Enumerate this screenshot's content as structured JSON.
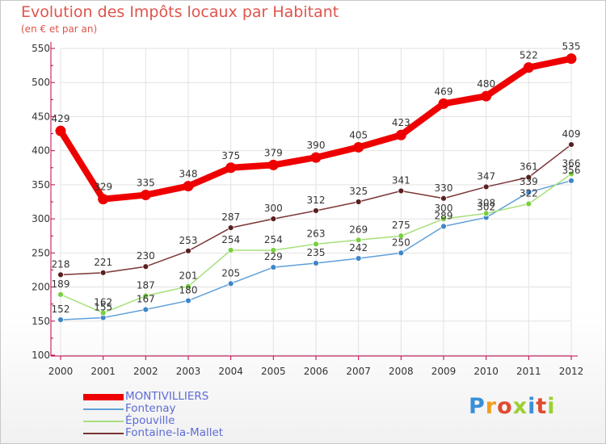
{
  "title": "Evolution des Impôts locaux par Habitant",
  "subtitle": "(en € et par an)",
  "logo_text": "Proxiti",
  "colors": {
    "title": "#e0534c",
    "axis": "#c0004a",
    "grid": "#e2e2e2",
    "label": "#333333",
    "legend_text": "#5c6cd6"
  },
  "chart_data": {
    "type": "line",
    "title": "Evolution des Impôts locaux par Habitant",
    "subtitle": "(en € et par an)",
    "xlabel": "",
    "ylabel": "",
    "ylim": [
      100,
      550
    ],
    "yticks": [
      100,
      150,
      200,
      250,
      300,
      350,
      400,
      450,
      500,
      550
    ],
    "grid": true,
    "legend_position": "bottom-left",
    "categories": [
      "2000",
      "2001",
      "2002",
      "2003",
      "2004",
      "2005",
      "2006",
      "2007",
      "2008",
      "2009",
      "2010",
      "2011",
      "2012"
    ],
    "series": [
      {
        "name": "MONTIVILLIERS",
        "color": "#ee0000",
        "values": [
          429,
          329,
          335,
          348,
          375,
          379,
          390,
          405,
          423,
          469,
          480,
          522,
          535
        ]
      },
      {
        "name": "Fontenay",
        "color": "#5f9fd8",
        "marker": "#3f86c8",
        "values": [
          152,
          155,
          167,
          180,
          205,
          229,
          235,
          242,
          250,
          289,
          302,
          339,
          356
        ]
      },
      {
        "name": "Épouville",
        "color": "#a6e07a",
        "marker": "#78d040",
        "values": [
          189,
          162,
          187,
          201,
          254,
          254,
          263,
          269,
          275,
          300,
          308,
          322,
          366
        ]
      },
      {
        "name": "Fontaine-la-Mallet",
        "color": "#7a3535",
        "marker": "#5a1f1f",
        "values": [
          218,
          221,
          230,
          253,
          287,
          300,
          312,
          325,
          341,
          330,
          347,
          361,
          409
        ]
      }
    ]
  }
}
